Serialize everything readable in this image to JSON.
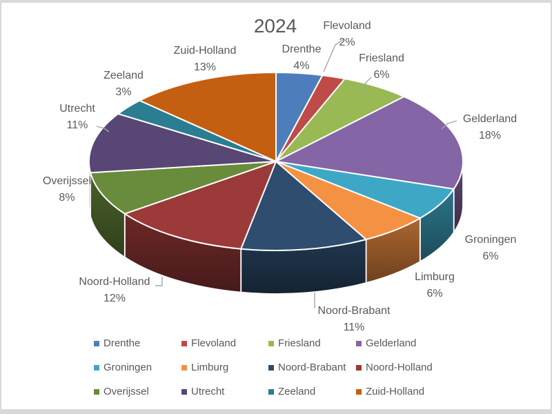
{
  "frame": {
    "color": "#d9d9d9",
    "background": "#ffffff",
    "text_color": "#595959"
  },
  "chart_data": {
    "type": "pie",
    "effect": "3d",
    "title": "2024",
    "unit": "%",
    "labels": [
      "Drenthe",
      "Flevoland",
      "Friesland",
      "Gelderland",
      "Groningen",
      "Limburg",
      "Noord-Brabant",
      "Noord-Holland",
      "Overijssel",
      "Utrecht",
      "Zeeland",
      "Zuid-Holland"
    ],
    "values": [
      4,
      2,
      6,
      18,
      6,
      6,
      11,
      12,
      8,
      11,
      3,
      13
    ],
    "colors": [
      "#4d7ebb",
      "#be4b48",
      "#98b954",
      "#8465a5",
      "#3fa7c6",
      "#f59143",
      "#2e4d6f",
      "#9b3a39",
      "#698b3c",
      "#584674",
      "#2b7d92",
      "#c45f11"
    ],
    "data_label_style": "category name and percentage, outside",
    "legend_position": "bottom",
    "start_angle": "12 o'clock, clockwise"
  }
}
